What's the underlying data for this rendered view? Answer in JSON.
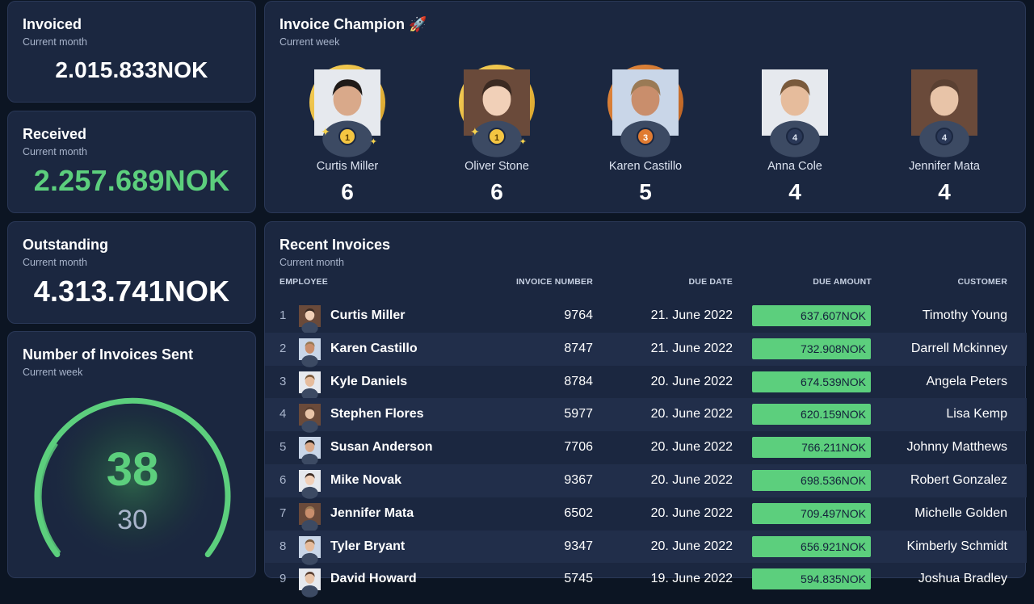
{
  "kpis": {
    "invoiced": {
      "title": "Invoiced",
      "subtitle": "Current month",
      "value": "2.015.833NOK"
    },
    "received": {
      "title": "Received",
      "subtitle": "Current month",
      "value": "2.257.689NOK"
    },
    "outstanding": {
      "title": "Outstanding",
      "subtitle": "Current month",
      "value": "4.313.741NOK"
    }
  },
  "gauge": {
    "title": "Number of Invoices Sent",
    "subtitle": "Current week",
    "value": "38",
    "target": "30",
    "color": "#5ccf7d"
  },
  "champion": {
    "title": "Invoice Champion 🚀",
    "subtitle": "Current week",
    "people": [
      {
        "name": "Curtis Miller",
        "count": "6",
        "rank": "1",
        "tier": "gold"
      },
      {
        "name": "Oliver Stone",
        "count": "6",
        "rank": "1",
        "tier": "gold"
      },
      {
        "name": "Karen Castillo",
        "count": "5",
        "rank": "3",
        "tier": "bronze"
      },
      {
        "name": "Anna Cole",
        "count": "4",
        "rank": "4",
        "tier": "none"
      },
      {
        "name": "Jennifer Mata",
        "count": "4",
        "rank": "4",
        "tier": "none"
      }
    ]
  },
  "invoices": {
    "title": "Recent Invoices",
    "subtitle": "Current month",
    "columns": {
      "employee": "EMPLOYEE",
      "invoice_number": "INVOICE NUMBER",
      "due_date": "DUE DATE",
      "due_amount": "DUE AMOUNT",
      "customer": "CUSTOMER"
    },
    "rows": [
      {
        "idx": "1",
        "employee": "Curtis Miller",
        "number": "9764",
        "date": "21. June 2022",
        "amount": "637.607NOK",
        "customer": "Timothy Young"
      },
      {
        "idx": "2",
        "employee": "Karen Castillo",
        "number": "8747",
        "date": "21. June 2022",
        "amount": "732.908NOK",
        "customer": "Darrell Mckinney"
      },
      {
        "idx": "3",
        "employee": "Kyle Daniels",
        "number": "8784",
        "date": "20. June 2022",
        "amount": "674.539NOK",
        "customer": "Angela Peters"
      },
      {
        "idx": "4",
        "employee": "Stephen Flores",
        "number": "5977",
        "date": "20. June 2022",
        "amount": "620.159NOK",
        "customer": "Lisa Kemp"
      },
      {
        "idx": "5",
        "employee": "Susan Anderson",
        "number": "7706",
        "date": "20. June 2022",
        "amount": "766.211NOK",
        "customer": "Johnny Matthews"
      },
      {
        "idx": "6",
        "employee": "Mike Novak",
        "number": "9367",
        "date": "20. June 2022",
        "amount": "698.536NOK",
        "customer": "Robert Gonzalez"
      },
      {
        "idx": "7",
        "employee": "Jennifer Mata",
        "number": "6502",
        "date": "20. June 2022",
        "amount": "709.497NOK",
        "customer": "Michelle Golden"
      },
      {
        "idx": "8",
        "employee": "Tyler Bryant",
        "number": "9347",
        "date": "20. June 2022",
        "amount": "656.921NOK",
        "customer": "Kimberly Schmidt"
      },
      {
        "idx": "9",
        "employee": "David Howard",
        "number": "5745",
        "date": "19. June 2022",
        "amount": "594.835NOK",
        "customer": "Joshua Bradley"
      }
    ]
  }
}
